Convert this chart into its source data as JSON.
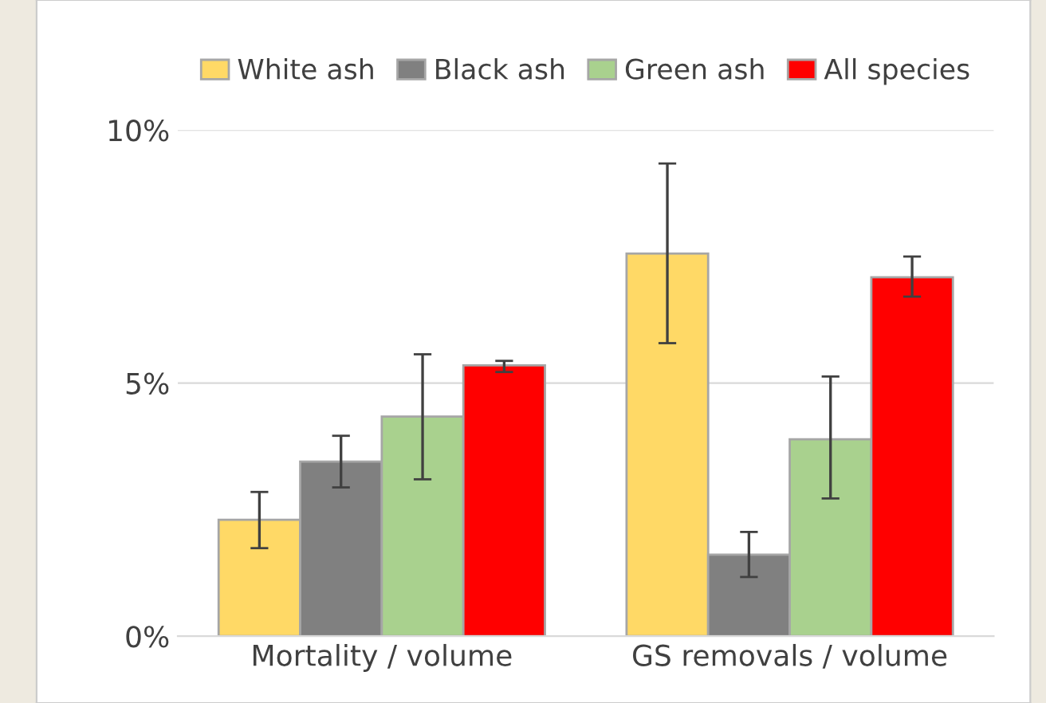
{
  "chart_data": {
    "type": "bar",
    "categories": [
      "Mortality / volume",
      "GS removals / volume"
    ],
    "series": [
      {
        "name": "White ash",
        "color": "#ffd966",
        "values": [
          2.3,
          7.56
        ],
        "errors": [
          [
            1.74,
            2.85
          ],
          [
            5.79,
            9.34
          ]
        ]
      },
      {
        "name": "Black ash",
        "color": "#808080",
        "values": [
          3.45,
          1.61
        ],
        "errors": [
          [
            2.94,
            3.96
          ],
          [
            1.17,
            2.06
          ]
        ]
      },
      {
        "name": "Green ash",
        "color": "#a9d18e",
        "values": [
          4.34,
          3.89
        ],
        "errors": [
          [
            3.1,
            5.57
          ],
          [
            2.72,
            5.13
          ]
        ]
      },
      {
        "name": "All species",
        "color": "#ff0000",
        "values": [
          5.35,
          7.09
        ],
        "errors": [
          [
            5.22,
            5.44
          ],
          [
            6.71,
            7.5
          ]
        ]
      }
    ],
    "ylim": [
      0,
      10
    ],
    "yticks": [
      {
        "value": 0,
        "label": "0%"
      },
      {
        "value": 5,
        "label": "5%"
      },
      {
        "value": 10,
        "label": "10%"
      }
    ],
    "grid": "y",
    "legend": "top"
  }
}
